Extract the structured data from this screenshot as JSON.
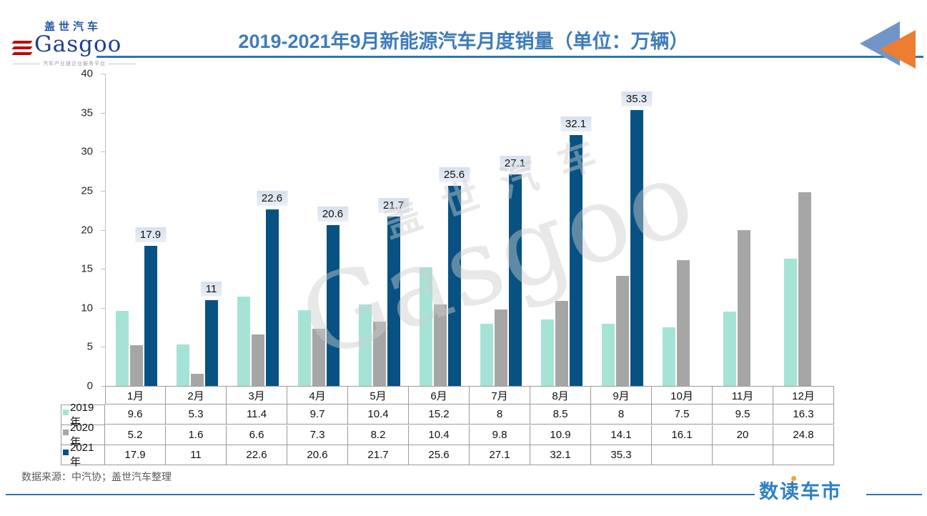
{
  "header": {
    "logo": {
      "brand_cn": "盖世汽车",
      "brand_en": "Gasgoo",
      "tagline": "汽车产业链企业服务平台"
    },
    "title": "2019-2021年9月新能源汽车月度销量（单位：万辆）"
  },
  "chart_data": {
    "type": "bar",
    "title": "2019-2021年9月新能源汽车月度销量（单位：万辆）",
    "unit": "万辆",
    "categories": [
      "1月",
      "2月",
      "3月",
      "4月",
      "5月",
      "6月",
      "7月",
      "8月",
      "9月",
      "10月",
      "11月",
      "12月"
    ],
    "series": [
      {
        "name": "2019年",
        "color": "#a5e3d7",
        "values": [
          9.6,
          5.3,
          11.4,
          9.7,
          10.4,
          15.2,
          8,
          8.5,
          8,
          7.5,
          9.5,
          16.3
        ]
      },
      {
        "name": "2020年",
        "color": "#a6a6a6",
        "values": [
          5.2,
          1.6,
          6.6,
          7.3,
          8.2,
          10.4,
          9.8,
          10.9,
          14.1,
          16.1,
          20,
          24.8
        ]
      },
      {
        "name": "2021年",
        "color": "#075283",
        "data_labels": true,
        "values": [
          17.9,
          11,
          22.6,
          20.6,
          21.7,
          25.6,
          27.1,
          32.1,
          35.3,
          null,
          null,
          null
        ]
      }
    ],
    "ylim": [
      0,
      40
    ],
    "yticks": [
      0,
      5,
      10,
      15,
      20,
      25,
      30,
      35,
      40
    ],
    "grid": false,
    "legend_position": "table-left-column"
  },
  "watermark": {
    "line1": "盖世汽车",
    "line2": "Gasgoo"
  },
  "footer": {
    "source": "数据来源：中汽协；盖世汽车整理",
    "brand": "数读车市"
  }
}
